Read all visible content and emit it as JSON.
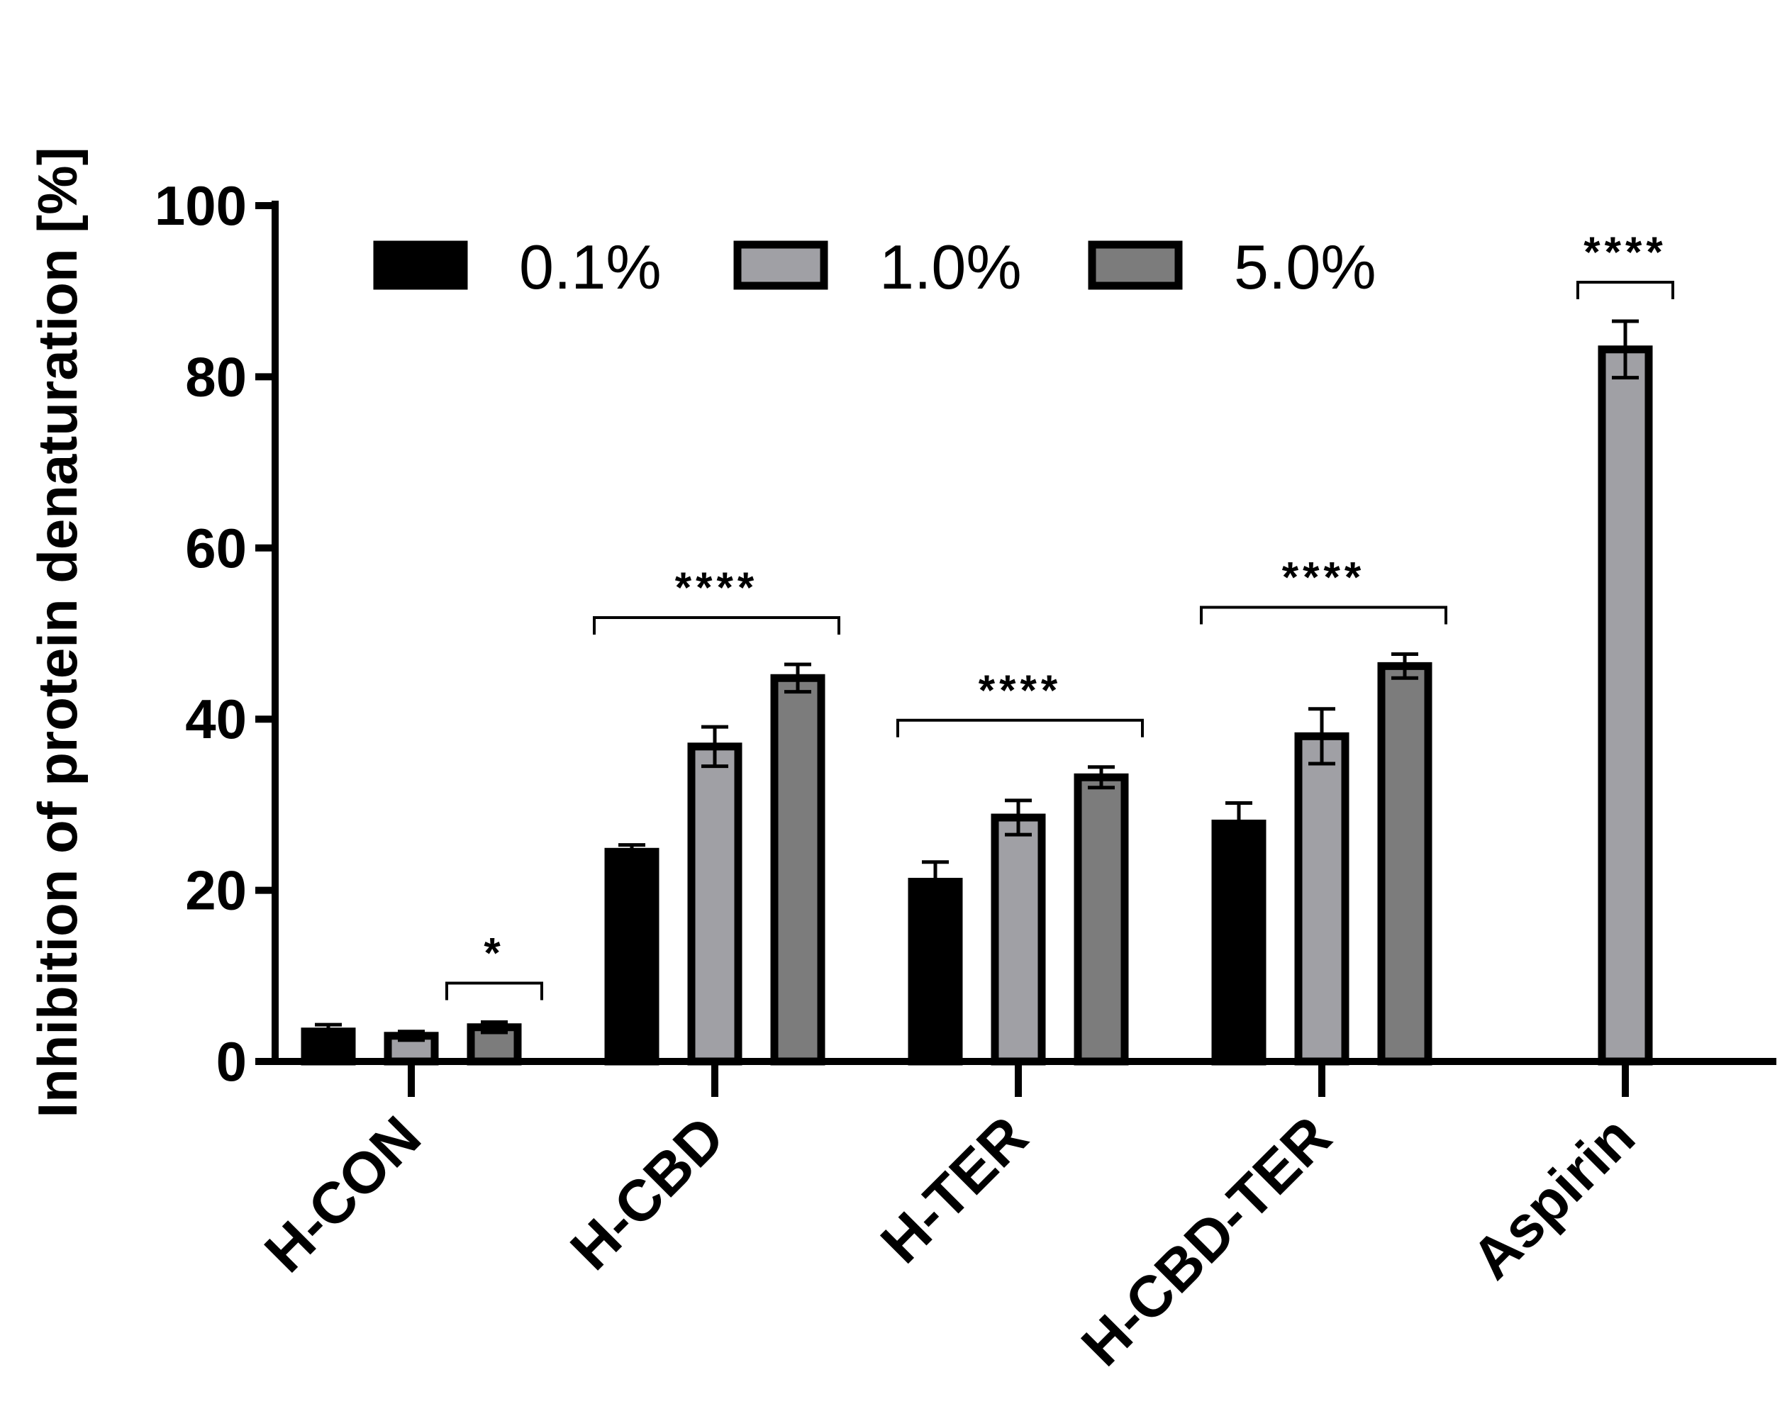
{
  "chart_data": {
    "type": "bar",
    "ylabel": "Inhibition of protein denaturation [%]",
    "xlabel": "",
    "ylim": [
      0,
      100
    ],
    "yticks": [
      0,
      20,
      40,
      60,
      80,
      100
    ],
    "categories": [
      "H-CON",
      "H-CBD",
      "H-TER",
      "H-CBD-TER",
      "Aspirin"
    ],
    "legend_position": "top",
    "series": [
      {
        "name": "0.1%",
        "color": "#000000",
        "values": [
          3.5,
          24.5,
          21.0,
          27.8,
          null
        ],
        "errors": [
          0.8,
          0.8,
          2.3,
          2.4,
          null
        ]
      },
      {
        "name": "1.0%",
        "color": "#a0a0a5",
        "values": [
          3.0,
          36.8,
          28.5,
          38.0,
          83.2
        ],
        "errors": [
          0.5,
          2.3,
          2.0,
          3.2,
          3.3
        ]
      },
      {
        "name": "5.0%",
        "color": "#7c7c7c",
        "values": [
          4.0,
          44.8,
          33.2,
          46.2,
          null
        ],
        "errors": [
          0.6,
          1.6,
          1.2,
          1.4,
          null
        ]
      }
    ],
    "significance": [
      {
        "category": "H-CON",
        "label": "*",
        "span": "5.0%"
      },
      {
        "category": "H-CBD",
        "label": "****",
        "span": "all"
      },
      {
        "category": "H-TER",
        "label": "****",
        "span": "all"
      },
      {
        "category": "H-CBD-TER",
        "label": "****",
        "span": "all"
      },
      {
        "category": "Aspirin",
        "label": "****",
        "span": "1.0%"
      }
    ]
  }
}
